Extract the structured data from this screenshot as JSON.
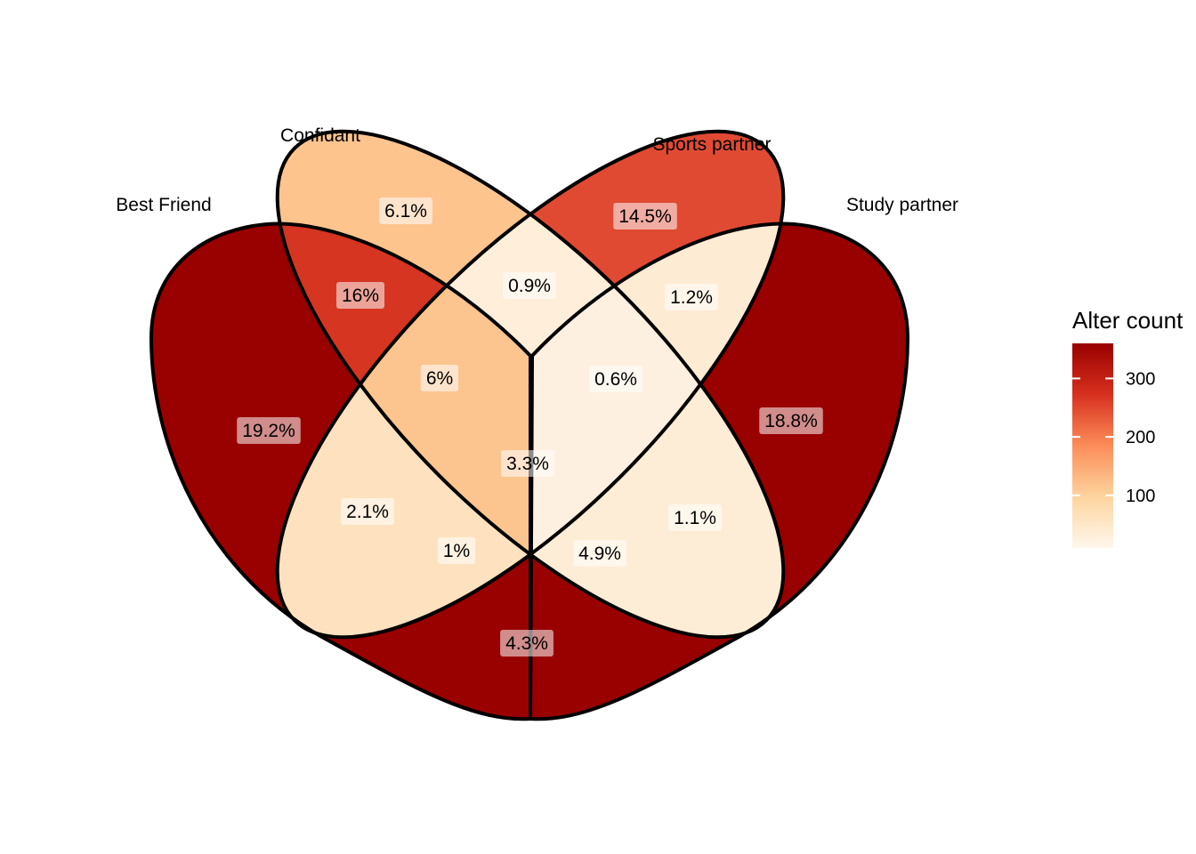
{
  "diagram": {
    "type": "venn",
    "sets": [
      {
        "id": "bf",
        "label": "Best Friend"
      },
      {
        "id": "cf",
        "label": "Confidant"
      },
      {
        "id": "sp",
        "label": "Sports partner"
      },
      {
        "id": "st",
        "label": "Study partner"
      }
    ],
    "regions": [
      {
        "sets": [
          "bf"
        ],
        "label": "19.2%",
        "fill": "#990000"
      },
      {
        "sets": [
          "st"
        ],
        "label": "18.8%",
        "fill": "#990000"
      },
      {
        "sets": [
          "cf"
        ],
        "label": "6.1%",
        "fill": "#FDC48E"
      },
      {
        "sets": [
          "sp"
        ],
        "label": "14.5%",
        "fill": "#E04A33"
      },
      {
        "sets": [
          "bf",
          "cf"
        ],
        "label": "16%",
        "fill": "#D63521"
      },
      {
        "sets": [
          "cf",
          "sp"
        ],
        "label": "0.9%",
        "fill": "#FEEEDA"
      },
      {
        "sets": [
          "sp",
          "st"
        ],
        "label": "1.2%",
        "fill": "#FEEBD3"
      },
      {
        "sets": [
          "bf",
          "cf",
          "sp"
        ],
        "label": "6%",
        "fill": "#FCC48E"
      },
      {
        "sets": [
          "cf",
          "sp",
          "st"
        ],
        "label": "0.6%",
        "fill": "#FEF0E0"
      },
      {
        "sets": [
          "bf",
          "cf",
          "sp",
          "st"
        ],
        "label": "3.3%",
        "fill": "#FDD9AB"
      },
      {
        "sets": [
          "bf",
          "sp"
        ],
        "label": "2.1%",
        "fill": "#FEE2BF"
      },
      {
        "sets": [
          "cf",
          "st"
        ],
        "label": "1.1%",
        "fill": "#FEEDD6"
      },
      {
        "sets": [
          "bf",
          "sp",
          "st"
        ],
        "label": "1%",
        "fill": "#FEEDD8"
      },
      {
        "sets": [
          "bf",
          "cf",
          "st"
        ],
        "label": "4.9%",
        "fill": "#FDCD9A"
      },
      {
        "sets": [
          "bf",
          "st"
        ],
        "label": "4.3%",
        "fill": "#FDD49F"
      }
    ]
  },
  "legend": {
    "title": "Alter count",
    "ticks": [
      "300",
      "200",
      "100"
    ],
    "tick_values": [
      300,
      200,
      100
    ],
    "min": 10,
    "max": 360,
    "colors": [
      "#FFF7EC",
      "#FDD49E",
      "#FC8D59",
      "#D7301F",
      "#990000"
    ]
  }
}
